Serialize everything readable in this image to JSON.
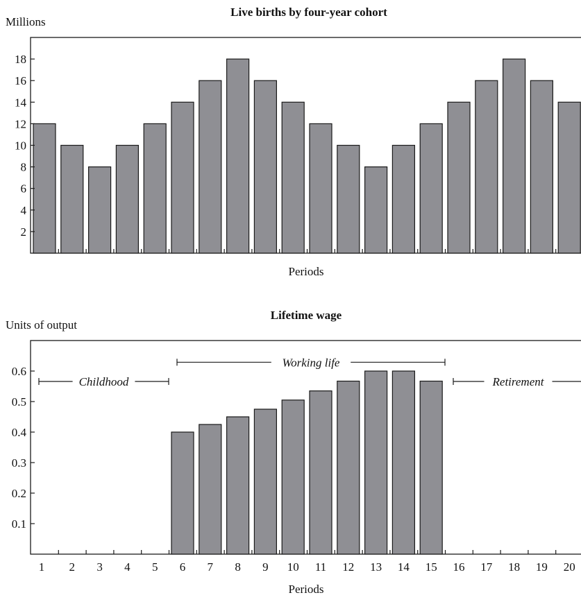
{
  "colors": {
    "bar_fill": "#8f8f94",
    "bar_stroke": "#1a1a1a",
    "axis": "#1a1a1a",
    "background": "#ffffff"
  },
  "chart_data": [
    {
      "type": "bar",
      "title": "Live births by four-year cohort",
      "ylabel": "Millions",
      "xlabel": "Periods",
      "ylim": [
        0,
        20
      ],
      "yticks": [
        2,
        4,
        6,
        8,
        10,
        12,
        14,
        16,
        18
      ],
      "categories": [
        "1",
        "2",
        "3",
        "4",
        "5",
        "6",
        "7",
        "8",
        "9",
        "10",
        "11",
        "12",
        "13",
        "14",
        "15",
        "16",
        "17",
        "18",
        "19",
        "20"
      ],
      "values": [
        12,
        10,
        8,
        10,
        12,
        14,
        16,
        18,
        16,
        14,
        12,
        10,
        8,
        10,
        12,
        14,
        16,
        18,
        16,
        14
      ],
      "show_category_labels": false
    },
    {
      "type": "bar",
      "title": "Lifetime wage",
      "ylabel": "Units of output",
      "xlabel": "Periods",
      "ylim": [
        0,
        0.7
      ],
      "yticks": [
        "0.1",
        "0.2",
        "0.3",
        "0.4",
        "0.5",
        "0.6"
      ],
      "categories": [
        "1",
        "2",
        "3",
        "4",
        "5",
        "6",
        "7",
        "8",
        "9",
        "10",
        "11",
        "12",
        "13",
        "14",
        "15",
        "16",
        "17",
        "18",
        "19",
        "20"
      ],
      "values": [
        null,
        null,
        null,
        null,
        null,
        0.4,
        0.425,
        0.45,
        0.475,
        0.505,
        0.535,
        0.567,
        0.6,
        0.6,
        0.567,
        null,
        null,
        null,
        null,
        null
      ],
      "show_category_labels": true,
      "annotations": [
        {
          "label": "Childhood",
          "from_period": 1,
          "to_period": 5,
          "value": 0.567
        },
        {
          "label": "Working life",
          "from_period": 6,
          "to_period": 15,
          "value": 0.63
        },
        {
          "label": "Retirement",
          "from_period": 16,
          "to_period": 20,
          "value": 0.567
        }
      ]
    }
  ]
}
